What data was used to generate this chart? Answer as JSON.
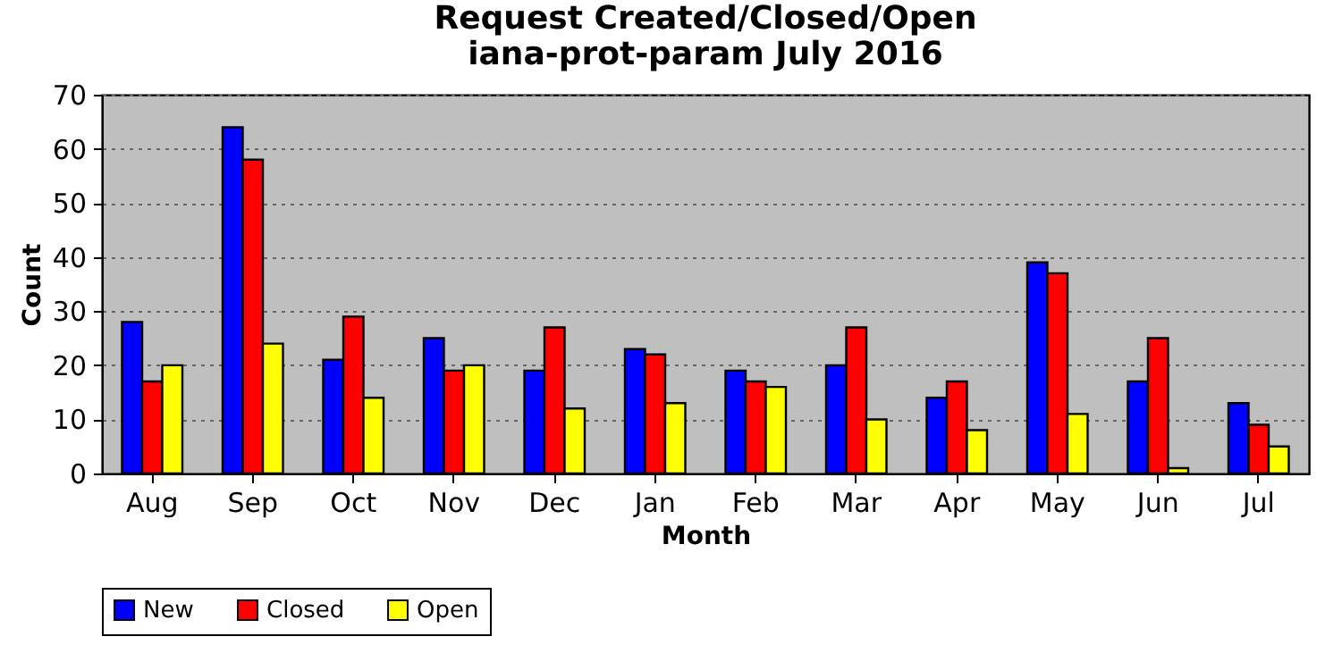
{
  "chart_data": {
    "type": "bar",
    "title": "Request Created/Closed/Open",
    "subtitle": "iana-prot-param July 2016",
    "xlabel": "Month",
    "ylabel": "Count",
    "categories": [
      "Aug",
      "Sep",
      "Oct",
      "Nov",
      "Dec",
      "Jan",
      "Feb",
      "Mar",
      "Apr",
      "May",
      "Jun",
      "Jul"
    ],
    "series": [
      {
        "name": "New",
        "color": "#0000ff",
        "values": [
          28,
          64,
          21,
          25,
          19,
          23,
          19,
          20,
          14,
          39,
          17,
          13
        ]
      },
      {
        "name": "Closed",
        "color": "#ff0000",
        "values": [
          17,
          58,
          29,
          19,
          27,
          22,
          17,
          27,
          17,
          37,
          25,
          9
        ]
      },
      {
        "name": "Open",
        "color": "#ffff00",
        "values": [
          20,
          24,
          14,
          20,
          12,
          13,
          16,
          10,
          8,
          11,
          1,
          5
        ]
      }
    ],
    "ylim": [
      0,
      70
    ],
    "yticks": [
      0,
      10,
      20,
      30,
      40,
      50,
      60,
      70
    ],
    "grid": "y",
    "legend": "bottom"
  }
}
